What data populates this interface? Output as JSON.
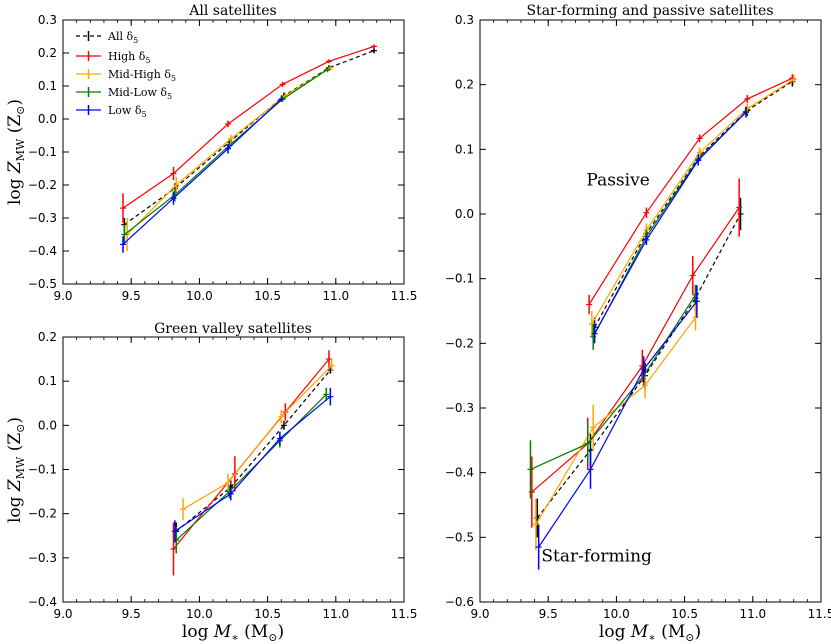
{
  "colors": {
    "all": "#000000",
    "high": "#ff0000",
    "midhigh": "#ffa500",
    "midlow": "#008000",
    "low": "#0000ff"
  },
  "chart_data": [
    {
      "id": "p1",
      "type": "line",
      "title": "All satellites",
      "xlabel": "log M* (M⊙)",
      "ylabel": "log Z_MW (Z⊙)",
      "xlim": [
        9.0,
        11.5
      ],
      "ylim": [
        -0.5,
        0.3
      ],
      "xticks": [
        "9.0",
        "9.5",
        "10.0",
        "10.5",
        "11.0",
        "11.5"
      ],
      "yticks": [
        "−0.5",
        "−0.4",
        "−0.3",
        "−0.2",
        "−0.1",
        "0.0",
        "0.1",
        "0.2",
        "0.3"
      ],
      "legend": {
        "position": "top-left",
        "entries": [
          {
            "key": "all",
            "label": "All δ5"
          },
          {
            "key": "high",
            "label": "High δ5"
          },
          {
            "key": "midhigh",
            "label": "Mid-High δ5"
          },
          {
            "key": "midlow",
            "label": "Mid-Low δ5"
          },
          {
            "key": "low",
            "label": "Low δ5"
          }
        ]
      },
      "series": [
        {
          "key": "all",
          "dashed": true,
          "x": [
            9.45,
            9.82,
            10.22,
            10.62,
            10.95,
            11.28
          ],
          "y": [
            -0.32,
            -0.21,
            -0.07,
            0.07,
            0.155,
            0.207
          ],
          "err": [
            0.02,
            0.015,
            0.01,
            0.01,
            0.008,
            0.008
          ]
        },
        {
          "key": "high",
          "x": [
            9.44,
            9.81,
            10.21,
            10.61,
            10.95,
            11.28
          ],
          "y": [
            -0.27,
            -0.165,
            -0.015,
            0.105,
            0.175,
            0.22
          ],
          "err": [
            0.045,
            0.02,
            0.01,
            0.008,
            0.006,
            0.006
          ]
        },
        {
          "key": "midhigh",
          "x": [
            9.47,
            9.83,
            10.23,
            10.63,
            10.96
          ],
          "y": [
            -0.35,
            -0.2,
            -0.06,
            0.07,
            0.155
          ],
          "err": [
            0.05,
            0.025,
            0.012,
            0.01,
            0.008
          ]
        },
        {
          "key": "midlow",
          "x": [
            9.45,
            9.82,
            10.22,
            10.61,
            10.94
          ],
          "y": [
            -0.35,
            -0.23,
            -0.08,
            0.06,
            0.15
          ],
          "err": [
            0.03,
            0.02,
            0.01,
            0.008,
            0.008
          ]
        },
        {
          "key": "low",
          "x": [
            9.44,
            9.81,
            10.21,
            10.6
          ],
          "y": [
            -0.38,
            -0.24,
            -0.09,
            0.06
          ],
          "err": [
            0.025,
            0.02,
            0.015,
            0.008
          ]
        }
      ]
    },
    {
      "id": "p2",
      "type": "line",
      "title": "Green valley satellites",
      "xlabel": "log M* (M⊙)",
      "ylabel": "log Z_MW (Z⊙)",
      "xlim": [
        9.0,
        11.5
      ],
      "ylim": [
        -0.4,
        0.2
      ],
      "xticks": [
        "9.0",
        "9.5",
        "10.0",
        "10.5",
        "11.0",
        "11.5"
      ],
      "yticks": [
        "−0.4",
        "−0.3",
        "−0.2",
        "−0.1",
        "0.0",
        "0.1",
        "0.2"
      ],
      "series": [
        {
          "key": "all",
          "dashed": true,
          "x": [
            9.83,
            10.23,
            10.62,
            10.96
          ],
          "y": [
            -0.24,
            -0.14,
            0.0,
            0.125
          ],
          "err": [
            0.02,
            0.015,
            0.01,
            0.008
          ]
        },
        {
          "key": "high",
          "x": [
            9.81,
            10.26,
            10.63,
            10.95
          ],
          "y": [
            -0.28,
            -0.11,
            0.03,
            0.15
          ],
          "err": [
            0.06,
            0.04,
            0.02,
            0.02
          ]
        },
        {
          "key": "midhigh",
          "x": [
            9.88,
            10.21,
            10.6,
            10.97
          ],
          "y": [
            -0.19,
            -0.13,
            0.02,
            0.135
          ],
          "err": [
            0.025,
            0.02,
            0.015,
            0.015
          ]
        },
        {
          "key": "midlow",
          "x": [
            9.83,
            10.22,
            10.59,
            10.93
          ],
          "y": [
            -0.26,
            -0.15,
            -0.035,
            0.07
          ],
          "err": [
            0.03,
            0.015,
            0.015,
            0.015
          ]
        },
        {
          "key": "low",
          "x": [
            9.82,
            10.23,
            10.59,
            10.96
          ],
          "y": [
            -0.24,
            -0.155,
            -0.03,
            0.065
          ],
          "err": [
            0.025,
            0.015,
            0.015,
            0.02
          ]
        }
      ]
    },
    {
      "id": "p3",
      "type": "line",
      "title": "Star-forming and passive satellites",
      "xlabel": "log M* (M⊙)",
      "ylabel": "",
      "xlim": [
        9.0,
        11.5
      ],
      "ylim": [
        -0.6,
        0.3
      ],
      "xticks": [
        "9.0",
        "9.5",
        "10.0",
        "10.5",
        "11.0",
        "11.5"
      ],
      "yticks": [
        "−0.6",
        "−0.5",
        "−0.4",
        "−0.3",
        "−0.2",
        "−0.1",
        "0.0",
        "0.1",
        "0.2",
        "0.3"
      ],
      "annotations": [
        {
          "key": "high",
          "text": "Passive",
          "x": 9.78,
          "y": 0.044
        },
        {
          "key": "low",
          "text": "Star-forming",
          "x": 9.45,
          "y": -0.537
        }
      ],
      "series": [
        {
          "key": "all",
          "dashed": true,
          "x": [
            9.84,
            10.22,
            10.61,
            10.96,
            11.29
          ],
          "y": [
            -0.175,
            -0.03,
            0.09,
            0.16,
            0.205
          ],
          "err": [
            0.015,
            0.01,
            0.008,
            0.008,
            0.008
          ]
        },
        {
          "key": "high",
          "x": [
            9.8,
            10.22,
            10.61,
            10.96,
            11.29
          ],
          "y": [
            -0.14,
            0.002,
            0.117,
            0.178,
            0.21
          ],
          "err": [
            0.015,
            0.008,
            0.006,
            0.006,
            0.006
          ]
        },
        {
          "key": "midhigh",
          "x": [
            9.82,
            10.22,
            10.61,
            10.96,
            11.3
          ],
          "y": [
            -0.17,
            -0.025,
            0.095,
            0.163,
            0.208
          ],
          "err": [
            0.02,
            0.01,
            0.008,
            0.008,
            0.008
          ]
        },
        {
          "key": "midlow",
          "x": [
            9.83,
            10.22,
            10.6,
            10.95
          ],
          "y": [
            -0.19,
            -0.035,
            0.085,
            0.157
          ],
          "err": [
            0.02,
            0.01,
            0.008,
            0.008
          ]
        },
        {
          "key": "low",
          "x": [
            9.84,
            10.22,
            10.6,
            10.95
          ],
          "y": [
            -0.185,
            -0.04,
            0.083,
            0.158
          ],
          "err": [
            0.015,
            0.008,
            0.008,
            0.008
          ]
        },
        {
          "key": "all",
          "dashed": true,
          "x": [
            9.42,
            9.81,
            10.21,
            10.58,
            10.91
          ],
          "y": [
            -0.47,
            -0.365,
            -0.25,
            -0.13,
            0.0
          ],
          "err": [
            0.03,
            0.025,
            0.02,
            0.02,
            0.025
          ]
        },
        {
          "key": "high",
          "x": [
            9.38,
            9.79,
            10.19,
            10.56,
            10.9
          ],
          "y": [
            -0.43,
            -0.355,
            -0.235,
            -0.095,
            0.01
          ],
          "err": [
            0.055,
            0.04,
            0.025,
            0.03,
            0.045
          ]
        },
        {
          "key": "midhigh",
          "x": [
            9.41,
            9.83,
            10.21,
            10.58
          ],
          "y": [
            -0.48,
            -0.33,
            -0.265,
            -0.16
          ],
          "err": [
            0.04,
            0.035,
            0.02,
            0.02
          ]
        },
        {
          "key": "midlow",
          "x": [
            9.37,
            9.79,
            10.2,
            10.58
          ],
          "y": [
            -0.395,
            -0.355,
            -0.25,
            -0.125
          ],
          "err": [
            0.045,
            0.03,
            0.015,
            0.015
          ]
        },
        {
          "key": "low",
          "x": [
            9.43,
            9.81,
            10.2,
            10.59
          ],
          "y": [
            -0.515,
            -0.395,
            -0.24,
            -0.135
          ],
          "err": [
            0.035,
            0.03,
            0.02,
            0.025
          ]
        }
      ]
    }
  ]
}
